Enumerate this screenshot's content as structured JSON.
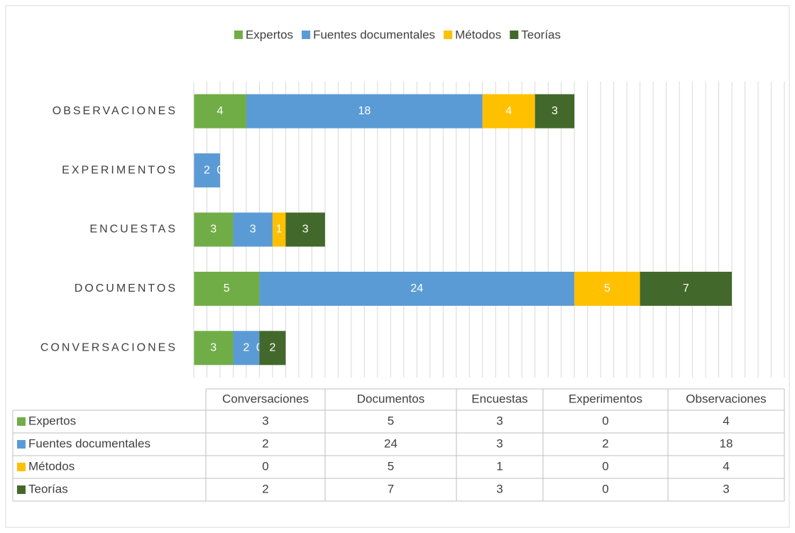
{
  "chart_data": {
    "type": "stacked-bar-horizontal",
    "categories": [
      "Conversaciones",
      "Documentos",
      "Encuestas",
      "Experimentos",
      "Observaciones"
    ],
    "series": [
      {
        "name": "Expertos",
        "color": "#70ad47",
        "values": [
          3,
          5,
          3,
          0,
          4
        ]
      },
      {
        "name": "Fuentes documentales",
        "color": "#5b9bd5",
        "values": [
          2,
          24,
          3,
          2,
          18
        ]
      },
      {
        "name": "Métodos",
        "color": "#ffc000",
        "values": [
          0,
          5,
          1,
          0,
          4
        ]
      },
      {
        "name": "Teorías",
        "color": "#43682b",
        "values": [
          2,
          7,
          3,
          0,
          3
        ]
      }
    ],
    "xlim": [
      0,
      45
    ],
    "xticks": [
      0,
      1,
      2,
      3,
      4,
      5,
      6,
      7,
      8,
      9,
      10,
      11,
      12,
      13,
      14,
      15,
      16,
      17,
      18,
      19,
      20,
      21,
      22,
      23,
      24,
      25,
      26,
      27,
      28,
      29,
      30,
      31,
      32,
      33,
      34,
      35,
      36,
      37,
      38,
      39,
      40,
      41,
      42,
      43,
      44,
      45
    ],
    "grid": true,
    "legend": "top",
    "data_table": true
  }
}
